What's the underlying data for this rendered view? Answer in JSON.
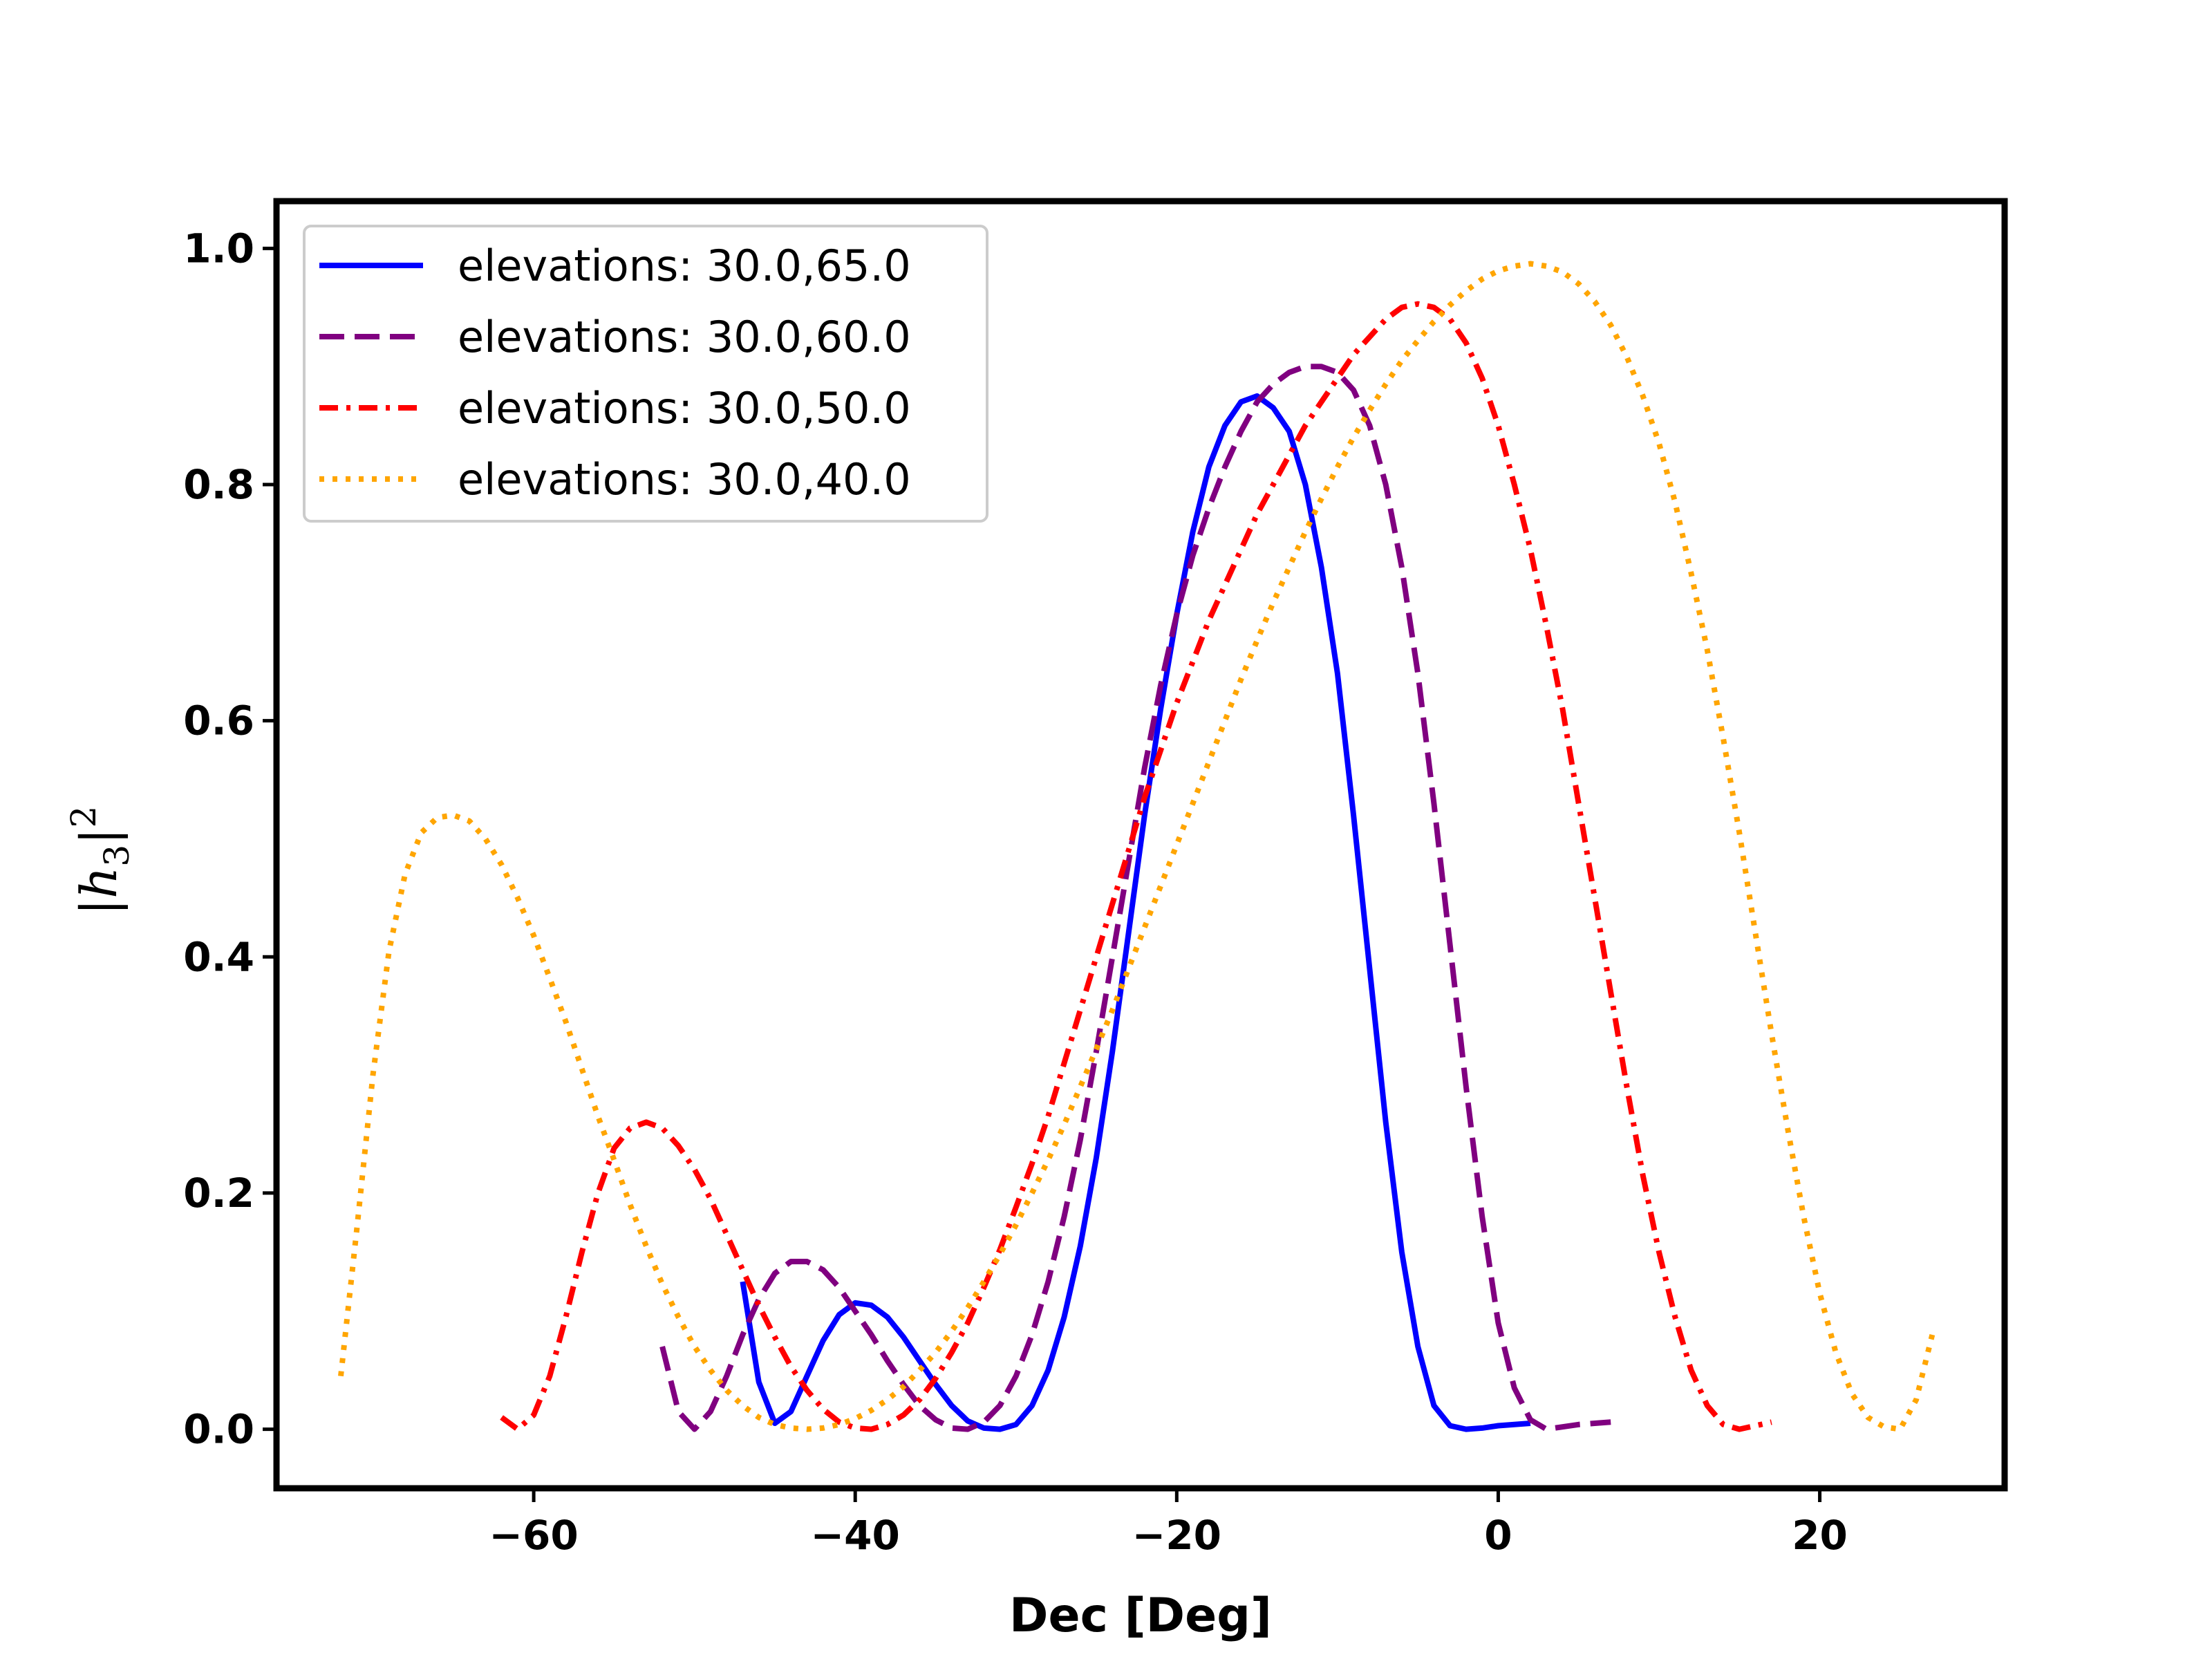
{
  "chart_data": {
    "type": "line",
    "title": "",
    "xlabel": "Dec [Deg]",
    "ylabel": {
      "text": "|h",
      "subscript": "3",
      "close": "|",
      "superscript": "2"
    },
    "xlim": [
      -76,
      31.5
    ],
    "ylim": [
      -0.05,
      1.04
    ],
    "xticks": [
      -60,
      -40,
      -20,
      0,
      20
    ],
    "xtick_labels": [
      "−60",
      "−40",
      "−20",
      "0",
      "20"
    ],
    "yticks": [
      0.0,
      0.2,
      0.4,
      0.6,
      0.8,
      1.0
    ],
    "ytick_labels": [
      "0.0",
      "0.2",
      "0.4",
      "0.6",
      "0.8",
      "1.0"
    ],
    "grid": false,
    "legend_position": "upper-left",
    "series": [
      {
        "name": "elevations: 30.0,65.0",
        "color": "#0000ff",
        "style": "solid",
        "x": [
          -47,
          -46,
          -45,
          -44,
          -43,
          -42,
          -41,
          -40,
          -39,
          -38,
          -37,
          -36,
          -35,
          -34,
          -33,
          -32,
          -31,
          -30,
          -29,
          -28,
          -27,
          -26,
          -25,
          -24,
          -23,
          -22,
          -21,
          -20,
          -19,
          -18,
          -17,
          -16,
          -15,
          -14,
          -13,
          -12,
          -11,
          -10,
          -9,
          -8,
          -7,
          -6,
          -5,
          -4,
          -3,
          -2,
          -1,
          0,
          1,
          2
        ],
        "y": [
          0.125,
          0.04,
          0.005,
          0.015,
          0.045,
          0.075,
          0.097,
          0.107,
          0.105,
          0.095,
          0.078,
          0.058,
          0.038,
          0.02,
          0.007,
          0.001,
          0.0,
          0.004,
          0.02,
          0.05,
          0.095,
          0.155,
          0.23,
          0.32,
          0.42,
          0.52,
          0.61,
          0.69,
          0.76,
          0.815,
          0.85,
          0.87,
          0.875,
          0.865,
          0.845,
          0.8,
          0.73,
          0.64,
          0.52,
          0.39,
          0.26,
          0.15,
          0.07,
          0.02,
          0.003,
          0.0,
          0.001,
          0.003,
          0.004,
          0.005
        ]
      },
      {
        "name": "elevations: 30.0,60.0",
        "color": "#800080",
        "style": "dashed",
        "x": [
          -52,
          -51,
          -50,
          -49,
          -48,
          -47,
          -46,
          -45,
          -44,
          -43,
          -42,
          -41,
          -40,
          -39,
          -38,
          -37,
          -36,
          -35,
          -34,
          -33,
          -32,
          -31,
          -30,
          -29,
          -28,
          -27,
          -26,
          -25,
          -24,
          -23,
          -22,
          -21,
          -20,
          -19,
          -18,
          -17,
          -16,
          -15,
          -14,
          -13,
          -12,
          -11,
          -10,
          -9,
          -8,
          -7,
          -6,
          -5,
          -4,
          -3,
          -2,
          -1,
          0,
          1,
          2,
          3,
          4,
          5,
          6,
          7
        ],
        "y": [
          0.07,
          0.015,
          0.0,
          0.015,
          0.045,
          0.08,
          0.11,
          0.132,
          0.142,
          0.142,
          0.135,
          0.12,
          0.1,
          0.08,
          0.058,
          0.038,
          0.02,
          0.008,
          0.001,
          0.0,
          0.006,
          0.02,
          0.045,
          0.08,
          0.125,
          0.18,
          0.245,
          0.32,
          0.4,
          0.48,
          0.56,
          0.63,
          0.69,
          0.74,
          0.78,
          0.815,
          0.845,
          0.87,
          0.885,
          0.895,
          0.9,
          0.9,
          0.895,
          0.88,
          0.85,
          0.8,
          0.73,
          0.64,
          0.53,
          0.41,
          0.29,
          0.18,
          0.09,
          0.035,
          0.008,
          0.0,
          0.002,
          0.004,
          0.005,
          0.006
        ]
      },
      {
        "name": "elevations: 30.0,50.0",
        "color": "#ff0000",
        "style": "dashdot",
        "x": [
          -62,
          -61,
          -60,
          -59,
          -58,
          -57,
          -56,
          -55,
          -54,
          -53,
          -52,
          -51,
          -50,
          -49,
          -48,
          -47,
          -46,
          -45,
          -44,
          -43,
          -42,
          -41,
          -40,
          -39,
          -38,
          -37,
          -36,
          -35,
          -34,
          -33,
          -32,
          -31,
          -30,
          -29,
          -28,
          -27,
          -26,
          -25,
          -24,
          -23,
          -22,
          -21,
          -20,
          -19,
          -18,
          -17,
          -16,
          -15,
          -14,
          -13,
          -12,
          -11,
          -10,
          -9,
          -8,
          -7,
          -6,
          -5,
          -4,
          -3,
          -2,
          -1,
          0,
          1,
          2,
          3,
          4,
          5,
          6,
          7,
          8,
          9,
          10,
          11,
          12,
          13,
          14,
          15,
          16,
          17
        ],
        "y": [
          0.01,
          0.0,
          0.012,
          0.045,
          0.095,
          0.15,
          0.2,
          0.238,
          0.255,
          0.26,
          0.255,
          0.24,
          0.22,
          0.195,
          0.165,
          0.135,
          0.105,
          0.078,
          0.053,
          0.033,
          0.017,
          0.006,
          0.001,
          0.0,
          0.004,
          0.012,
          0.025,
          0.043,
          0.065,
          0.09,
          0.12,
          0.152,
          0.188,
          0.225,
          0.265,
          0.31,
          0.355,
          0.4,
          0.445,
          0.49,
          0.535,
          0.575,
          0.615,
          0.65,
          0.685,
          0.715,
          0.745,
          0.775,
          0.8,
          0.825,
          0.85,
          0.87,
          0.89,
          0.91,
          0.925,
          0.94,
          0.95,
          0.953,
          0.95,
          0.94,
          0.92,
          0.89,
          0.85,
          0.8,
          0.745,
          0.68,
          0.61,
          0.53,
          0.45,
          0.37,
          0.29,
          0.215,
          0.15,
          0.095,
          0.05,
          0.02,
          0.004,
          0.0,
          0.003,
          0.006
        ]
      },
      {
        "name": "elevations: 30.0,40.0",
        "color": "#ffa500",
        "style": "dotted",
        "x": [
          -72,
          -71,
          -70,
          -69,
          -68,
          -67,
          -66,
          -65,
          -64,
          -63,
          -62,
          -61,
          -60,
          -59,
          -58,
          -57,
          -56,
          -55,
          -54,
          -53,
          -52,
          -51,
          -50,
          -49,
          -48,
          -47,
          -46,
          -45,
          -44,
          -43,
          -42,
          -41,
          -40,
          -39,
          -38,
          -37,
          -36,
          -35,
          -34,
          -33,
          -32,
          -31,
          -30,
          -29,
          -28,
          -27,
          -26,
          -25,
          -24,
          -23,
          -22,
          -21,
          -20,
          -19,
          -18,
          -17,
          -16,
          -15,
          -14,
          -13,
          -12,
          -11,
          -10,
          -9,
          -8,
          -7,
          -6,
          -5,
          -4,
          -3,
          -2,
          -1,
          0,
          1,
          2,
          3,
          4,
          5,
          6,
          7,
          8,
          9,
          10,
          11,
          12,
          13,
          14,
          15,
          16,
          17,
          18,
          19,
          20,
          21,
          22,
          23,
          24,
          25,
          26,
          27
        ],
        "y": [
          0.045,
          0.17,
          0.3,
          0.405,
          0.47,
          0.505,
          0.518,
          0.52,
          0.515,
          0.5,
          0.478,
          0.45,
          0.418,
          0.382,
          0.345,
          0.305,
          0.265,
          0.228,
          0.19,
          0.155,
          0.123,
          0.095,
          0.07,
          0.05,
          0.033,
          0.02,
          0.01,
          0.004,
          0.001,
          0.0,
          0.001,
          0.004,
          0.009,
          0.016,
          0.025,
          0.036,
          0.05,
          0.065,
          0.083,
          0.103,
          0.125,
          0.148,
          0.173,
          0.2,
          0.228,
          0.258,
          0.29,
          0.322,
          0.355,
          0.39,
          0.425,
          0.46,
          0.495,
          0.53,
          0.565,
          0.6,
          0.635,
          0.668,
          0.7,
          0.73,
          0.76,
          0.788,
          0.815,
          0.84,
          0.863,
          0.885,
          0.905,
          0.922,
          0.938,
          0.952,
          0.964,
          0.974,
          0.981,
          0.985,
          0.987,
          0.985,
          0.98,
          0.97,
          0.955,
          0.935,
          0.908,
          0.875,
          0.835,
          0.785,
          0.725,
          0.66,
          0.585,
          0.505,
          0.42,
          0.335,
          0.255,
          0.18,
          0.115,
          0.065,
          0.03,
          0.01,
          0.002,
          0.0,
          0.025,
          0.08
        ]
      }
    ]
  }
}
